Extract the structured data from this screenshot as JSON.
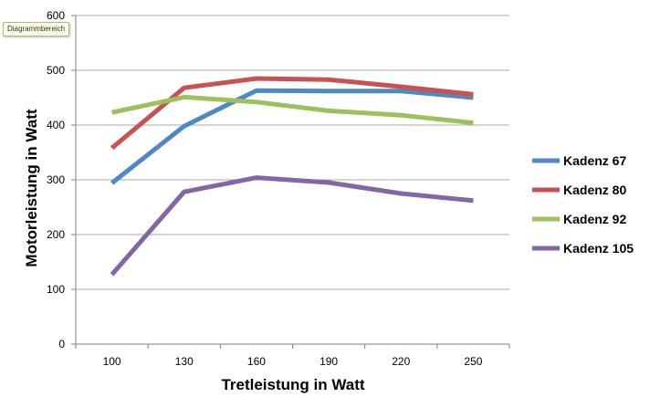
{
  "tooltip": "Diagrammbereich",
  "chart_data": {
    "type": "line",
    "title": "",
    "xlabel": "Tretleistung in Watt",
    "ylabel": "Motorleistung in Watt",
    "categories": [
      "100",
      "130",
      "160",
      "190",
      "220",
      "250"
    ],
    "ylim": [
      0,
      600
    ],
    "yticks": [
      0,
      100,
      200,
      300,
      400,
      500,
      600
    ],
    "grid": "horizontal",
    "legend": "right",
    "series": [
      {
        "name": "Kadenz 67",
        "color": "#4f88c6",
        "values": [
          294,
          398,
          463,
          462,
          462,
          450
        ]
      },
      {
        "name": "Kadenz 80",
        "color": "#c9514f",
        "values": [
          358,
          468,
          485,
          483,
          470,
          456
        ]
      },
      {
        "name": "Kadenz 92",
        "color": "#9bc25a",
        "values": [
          423,
          451,
          442,
          426,
          418,
          404
        ]
      },
      {
        "name": "Kadenz 105",
        "color": "#8366a6",
        "values": [
          127,
          278,
          304,
          295,
          275,
          262
        ]
      }
    ]
  }
}
